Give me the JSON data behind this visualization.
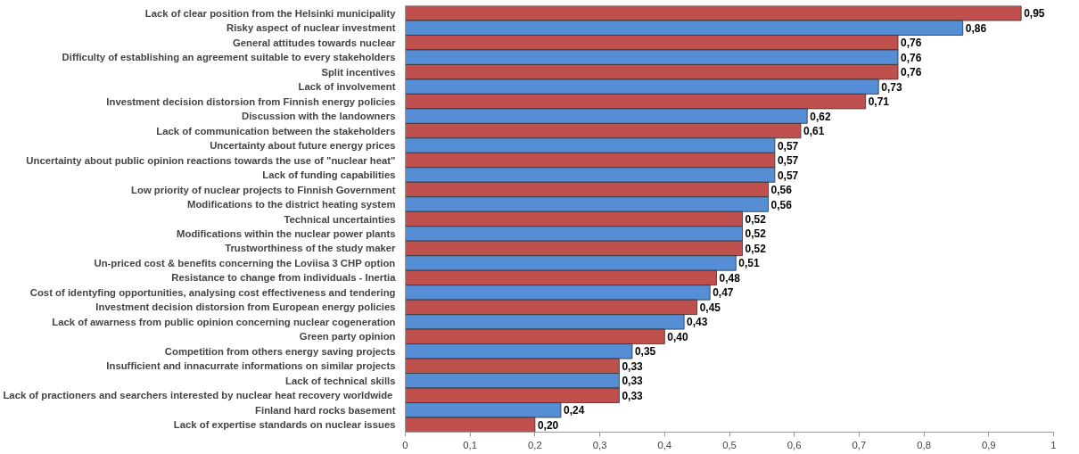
{
  "chart_data": {
    "type": "bar",
    "orientation": "horizontal",
    "categories": [
      "Lack of clear position from the Helsinki municipality",
      "Risky aspect of nuclear investment",
      "General attitudes towards nuclear",
      "Difficulty of establishing an agreement suitable to every stakeholders",
      "Split incentives",
      "Lack of involvement",
      "Investment decision distorsion from Finnish energy policies",
      "Discussion with the landowners",
      "Lack of communication between the stakeholders",
      "Uncertainty about future energy prices",
      "Uncertainty about public opinion reactions towards the use of \"nuclear heat\"",
      "Lack of funding capabilities",
      "Low priority of nuclear projects to Finnish Government",
      "Modifications to the district heating system",
      "Technical uncertainties",
      "Modifications within the nuclear power plants",
      "Trustworthiness of the study maker",
      "Un-priced cost & benefits concerning the Loviisa 3 CHP option",
      "Resistance to change from individuals - Inertia",
      "Cost of identyfing opportunities, analysing cost effectiveness and tendering",
      "Investment decision distorsion from European energy policies",
      "Lack of awarness from public opinion concerning nuclear cogeneration",
      "Green party opinion",
      "Competition from others energy saving projects",
      "Insufficient and innacurrate informations on similar projects",
      "Lack of technical skills",
      "Lack of  practioners and searchers interested by nuclear heat recovery worldwide",
      "Finland hard rocks basement",
      "Lack of expertise standards on nuclear issues"
    ],
    "values": [
      0.95,
      0.86,
      0.76,
      0.76,
      0.76,
      0.73,
      0.71,
      0.62,
      0.61,
      0.57,
      0.57,
      0.57,
      0.56,
      0.56,
      0.52,
      0.52,
      0.52,
      0.51,
      0.48,
      0.47,
      0.45,
      0.43,
      0.4,
      0.35,
      0.33,
      0.33,
      0.33,
      0.24,
      0.2
    ],
    "value_labels": [
      "0,95",
      "0,86",
      "0,76",
      "0,76",
      "0,76",
      "0,73",
      "0,71",
      "0,62",
      "0,61",
      "0,57",
      "0,57",
      "0,57",
      "0,56",
      "0,56",
      "0,52",
      "0,52",
      "0,52",
      "0,51",
      "0,48",
      "0,47",
      "0,45",
      "0,43",
      "0,40",
      "0,35",
      "0,33",
      "0,33",
      "0,33",
      "0,24",
      "0,20"
    ],
    "colors": [
      "#c0504d",
      "#558ed5",
      "#c0504d",
      "#558ed5",
      "#c0504d",
      "#558ed5",
      "#c0504d",
      "#558ed5",
      "#c0504d",
      "#558ed5",
      "#c0504d",
      "#558ed5",
      "#c0504d",
      "#558ed5",
      "#c0504d",
      "#558ed5",
      "#c0504d",
      "#558ed5",
      "#c0504d",
      "#558ed5",
      "#c0504d",
      "#558ed5",
      "#c0504d",
      "#558ed5",
      "#c0504d",
      "#558ed5",
      "#c0504d",
      "#558ed5",
      "#c0504d"
    ],
    "xlim": [
      0,
      1
    ],
    "xticks": [
      0,
      {
        "value": 0.1,
        "label": "0,1"
      },
      {
        "value": 0.2,
        "label": "0,2"
      },
      {
        "value": 0.3,
        "label": "0,3"
      },
      {
        "value": 0.4,
        "label": "0,4"
      },
      {
        "value": 0.5,
        "label": "0,5"
      },
      {
        "value": 0.6,
        "label": "0,6"
      },
      {
        "value": 0.7,
        "label": "0,7"
      },
      {
        "value": 0.8,
        "label": "0,8"
      },
      {
        "value": 0.9,
        "label": "0,9"
      },
      1
    ],
    "grid": false
  }
}
